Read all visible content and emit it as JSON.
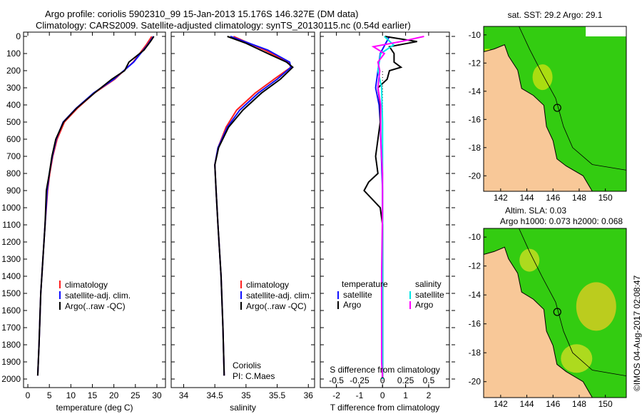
{
  "title_line1": "Argo profile: coriolis 5902310_99 15-Jan-2013 15.176S 146.327E (DM data)",
  "title_line2": "Climatology: CARS2009. Satellite-adjusted climatology: synTS_20130115.nc (0.54d earlier)",
  "copyright": "©IMOS 04-Aug-2017 02:08:47",
  "colors": {
    "clim": "#ff2020",
    "sat": "#1010ff",
    "argo": "#000000",
    "sal_sat": "#00e5e5",
    "sal_argo": "#ff00ff",
    "land": "#f8c898",
    "ocean": "#33cc11"
  },
  "chart_data": [
    {
      "type": "line",
      "name": "temperature",
      "xlabel": "temperature (deg C)",
      "ylabel": "",
      "xlim": [
        -1,
        32
      ],
      "ylim": [
        2000,
        0
      ],
      "xticks": [
        "0",
        "5",
        "10",
        "15",
        "20",
        "25",
        "30"
      ],
      "xtick_values": [
        0,
        5,
        10,
        15,
        20,
        25,
        30
      ],
      "yticks": [
        "0",
        "100",
        "200",
        "300",
        "400",
        "500",
        "600",
        "700",
        "800",
        "900",
        "1000",
        "1100",
        "1200",
        "1300",
        "1400",
        "1500",
        "1600",
        "1700",
        "1800",
        "1900",
        "2000"
      ],
      "legend": [
        "climatology",
        "satellite-adj. clim.",
        "Argo(..raw -QC)"
      ],
      "series": [
        {
          "name": "climatology",
          "depth": [
            0,
            50,
            150,
            250,
            330,
            420,
            500,
            600,
            700,
            800,
            900,
            1100,
            1300,
            1500,
            1800,
            1980
          ],
          "values": [
            28.8,
            27.5,
            24.5,
            20.2,
            15.5,
            11.5,
            8.5,
            6.8,
            5.8,
            5.1,
            4.6,
            4.0,
            3.5,
            3.0,
            2.6,
            2.3
          ]
        },
        {
          "name": "satellite-adj. clim.",
          "depth": [
            0,
            50,
            150,
            250,
            330,
            420,
            500,
            600,
            700,
            800,
            900,
            1100,
            1300,
            1500,
            1800,
            1980
          ],
          "values": [
            29.2,
            27.8,
            24.6,
            20.0,
            15.3,
            11.2,
            8.2,
            6.6,
            5.7,
            5.0,
            4.5,
            4.0,
            3.5,
            3.0,
            2.6,
            2.3
          ]
        },
        {
          "name": "Argo(..raw -QC)",
          "depth": [
            0,
            30,
            80,
            150,
            200,
            250,
            330,
            420,
            500,
            600,
            700,
            800,
            900,
            1100,
            1300,
            1500,
            1800,
            1980
          ],
          "values": [
            29.3,
            28.5,
            27.0,
            23.5,
            22.5,
            19.5,
            15.5,
            11.3,
            8.3,
            6.5,
            5.6,
            5.0,
            4.3,
            4.0,
            3.5,
            3.0,
            2.6,
            2.3
          ]
        }
      ]
    },
    {
      "type": "line",
      "name": "salinity",
      "xlabel": "salinity",
      "xlim": [
        33.8,
        36.1
      ],
      "ylim": [
        2000,
        0
      ],
      "xticks": [
        "34",
        "34.5",
        "35",
        "35.5",
        "36"
      ],
      "xtick_values": [
        34,
        34.5,
        35,
        35.5,
        36
      ],
      "annotation": [
        "Coriolis",
        "PI: C.Maes"
      ],
      "series": [
        {
          "name": "climatology",
          "depth": [
            0,
            80,
            150,
            180,
            250,
            330,
            430,
            530,
            650,
            750,
            900,
            1100,
            1400,
            1700,
            1980
          ],
          "values": [
            34.8,
            35.3,
            35.68,
            35.72,
            35.45,
            35.15,
            34.85,
            34.68,
            34.55,
            34.5,
            34.52,
            34.55,
            34.6,
            34.63,
            34.65
          ]
        },
        {
          "name": "satellite-adj. clim.",
          "depth": [
            0,
            80,
            150,
            180,
            250,
            330,
            430,
            530,
            650,
            750,
            900,
            1100,
            1400,
            1700,
            1980
          ],
          "values": [
            34.75,
            35.35,
            35.7,
            35.72,
            35.5,
            35.2,
            34.9,
            34.7,
            34.55,
            34.5,
            34.52,
            34.55,
            34.6,
            34.63,
            34.65
          ]
        },
        {
          "name": "Argo(..raw -QC)",
          "depth": [
            0,
            40,
            100,
            150,
            180,
            250,
            330,
            430,
            530,
            650,
            750,
            900,
            1100,
            1400,
            1700,
            1980
          ],
          "values": [
            34.7,
            35.0,
            35.35,
            35.65,
            35.75,
            35.55,
            35.25,
            34.95,
            34.72,
            34.56,
            34.5,
            34.52,
            34.55,
            34.6,
            34.63,
            34.65
          ]
        }
      ]
    },
    {
      "type": "line",
      "name": "difference",
      "xlabel": "T difference from climatology",
      "x2label": "S difference from climatology",
      "xlim": [
        -2.7,
        2.9
      ],
      "ylim": [
        2000,
        0
      ],
      "xticks": [
        "-2",
        "-1",
        "0",
        "1",
        "2"
      ],
      "xtick_values": [
        -2,
        -1,
        0,
        1,
        2
      ],
      "x2ticks": [
        "-0.5",
        "-0.25",
        "0",
        "0.25",
        "0.5"
      ],
      "x2tick_values": [
        -0.5,
        -0.25,
        0,
        0.25,
        0.5
      ],
      "legend_temperature": {
        "title": "temperature",
        "items": [
          "satellite",
          "Argo"
        ]
      },
      "legend_salinity": {
        "title": "salinity",
        "items": [
          "satellite",
          "Argo"
        ]
      },
      "series": [
        {
          "name": "T satellite",
          "depth": [
            0,
            50,
            100,
            200,
            300,
            400,
            500,
            700,
            900,
            1100,
            1500,
            2000
          ],
          "values": [
            0.3,
            0.1,
            -0.1,
            -0.2,
            -0.3,
            -0.15,
            -0.1,
            -0.05,
            0,
            0,
            0,
            0
          ]
        },
        {
          "name": "T Argo",
          "depth": [
            0,
            30,
            60,
            100,
            150,
            180,
            200,
            250,
            300,
            400,
            500,
            600,
            700,
            800,
            850,
            900,
            1000,
            1100,
            1500,
            1990
          ],
          "values": [
            0.1,
            1.5,
            0.3,
            0.5,
            0.5,
            0.8,
            0.3,
            0.2,
            -0.2,
            -0.1,
            -0.1,
            -0.2,
            -0.3,
            -0.2,
            -0.6,
            -0.8,
            -0.1,
            0,
            0,
            0
          ]
        },
        {
          "name": "S satellite",
          "depth": [
            0,
            50,
            100,
            200,
            300,
            500,
            800,
            1000,
            1500,
            2000
          ],
          "values": [
            0.02,
            0.12,
            -0.02,
            -0.05,
            -0.01,
            0,
            0,
            0,
            0,
            0
          ],
          "scale": "salinity"
        },
        {
          "name": "S Argo",
          "depth": [
            0,
            30,
            60,
            100,
            150,
            200,
            300,
            400,
            600,
            800,
            1000,
            1400,
            1900,
            1990
          ],
          "values": [
            0.45,
            0.2,
            -0.1,
            0.02,
            -0.05,
            -0.03,
            -0.05,
            -0.02,
            -0.02,
            0,
            0,
            -0.01,
            -0.01,
            0
          ],
          "scale": "salinity"
        }
      ]
    }
  ],
  "maps": [
    {
      "title": "sat. SST: 29.2 Argo: 29.1",
      "title2": "",
      "lon_ticks": [
        "142",
        "144",
        "146",
        "148",
        "150"
      ],
      "lat_ticks": [
        "-10",
        "-12",
        "-14",
        "-16",
        "-18",
        "-20"
      ],
      "float_lon": 146.327,
      "float_lat": -15.176
    },
    {
      "title": "Altim. SLA: 0.03",
      "title2": "Argo h1000: 0.073 h2000: 0.068",
      "lon_ticks": [
        "142",
        "144",
        "146",
        "148",
        "150"
      ],
      "lat_ticks": [
        "-10",
        "-12",
        "-14",
        "-16",
        "-18",
        "-20"
      ],
      "float_lon": 146.327,
      "float_lat": -15.176
    }
  ]
}
